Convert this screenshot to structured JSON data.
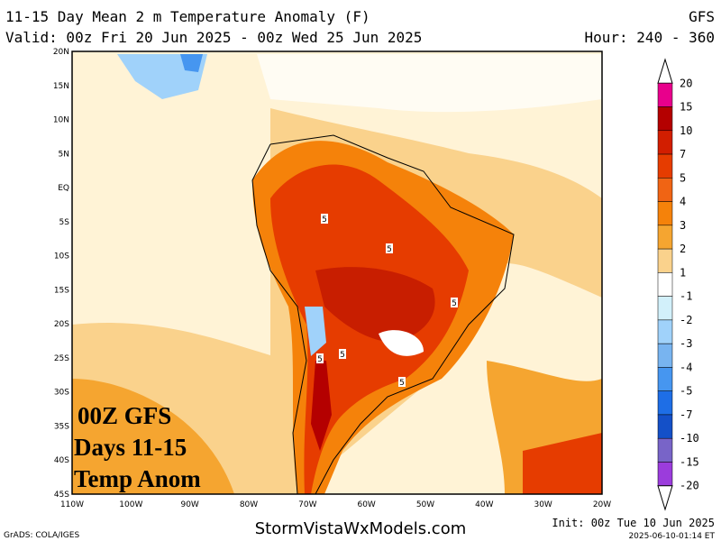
{
  "header": {
    "title": "11-15 Day Mean 2 m Temperature Anomaly (F)",
    "model": "GFS",
    "valid": "Valid: 00z Fri 20 Jun 2025 - 00z Wed 25 Jun 2025",
    "hour": "Hour: 240 - 360"
  },
  "map": {
    "lat_labels": [
      "20N",
      "15N",
      "10N",
      "5N",
      "EQ",
      "5S",
      "10S",
      "15S",
      "20S",
      "25S",
      "30S",
      "35S",
      "40S",
      "45S"
    ],
    "lon_labels": [
      "110W",
      "100W",
      "90W",
      "80W",
      "70W",
      "60W",
      "50W",
      "40W",
      "30W",
      "20W"
    ],
    "contour_labels": [
      "5",
      "5",
      "5",
      "5",
      "5",
      "5"
    ],
    "overlay": [
      "00Z GFS",
      "Days 11-15",
      "Temp Anom"
    ]
  },
  "colorbar": {
    "labels": [
      "20",
      "15",
      "10",
      "7",
      "5",
      "4",
      "3",
      "2",
      "1",
      "-1",
      "-2",
      "-3",
      "-4",
      "-5",
      "-7",
      "-10",
      "-15",
      "-20"
    ],
    "colors": [
      "#ffffff",
      "#e8008c",
      "#b40000",
      "#d21e00",
      "#e63c00",
      "#f06414",
      "#f5820a",
      "#f5a530",
      "#fad28c",
      "#ffffff",
      "#d2f0fa",
      "#a0d2fa",
      "#78b4f0",
      "#4696f0",
      "#1e6ee6",
      "#1450c8",
      "#7864c8",
      "#9b3cdc",
      "#ffffff"
    ]
  },
  "footer": {
    "grads": "GrADS: COLA/IGES",
    "site": "StormVistaWxModels.com",
    "init": "Init: 00z Tue 10 Jun 2025",
    "stamp": "2025-06-10-01:14 ET"
  }
}
